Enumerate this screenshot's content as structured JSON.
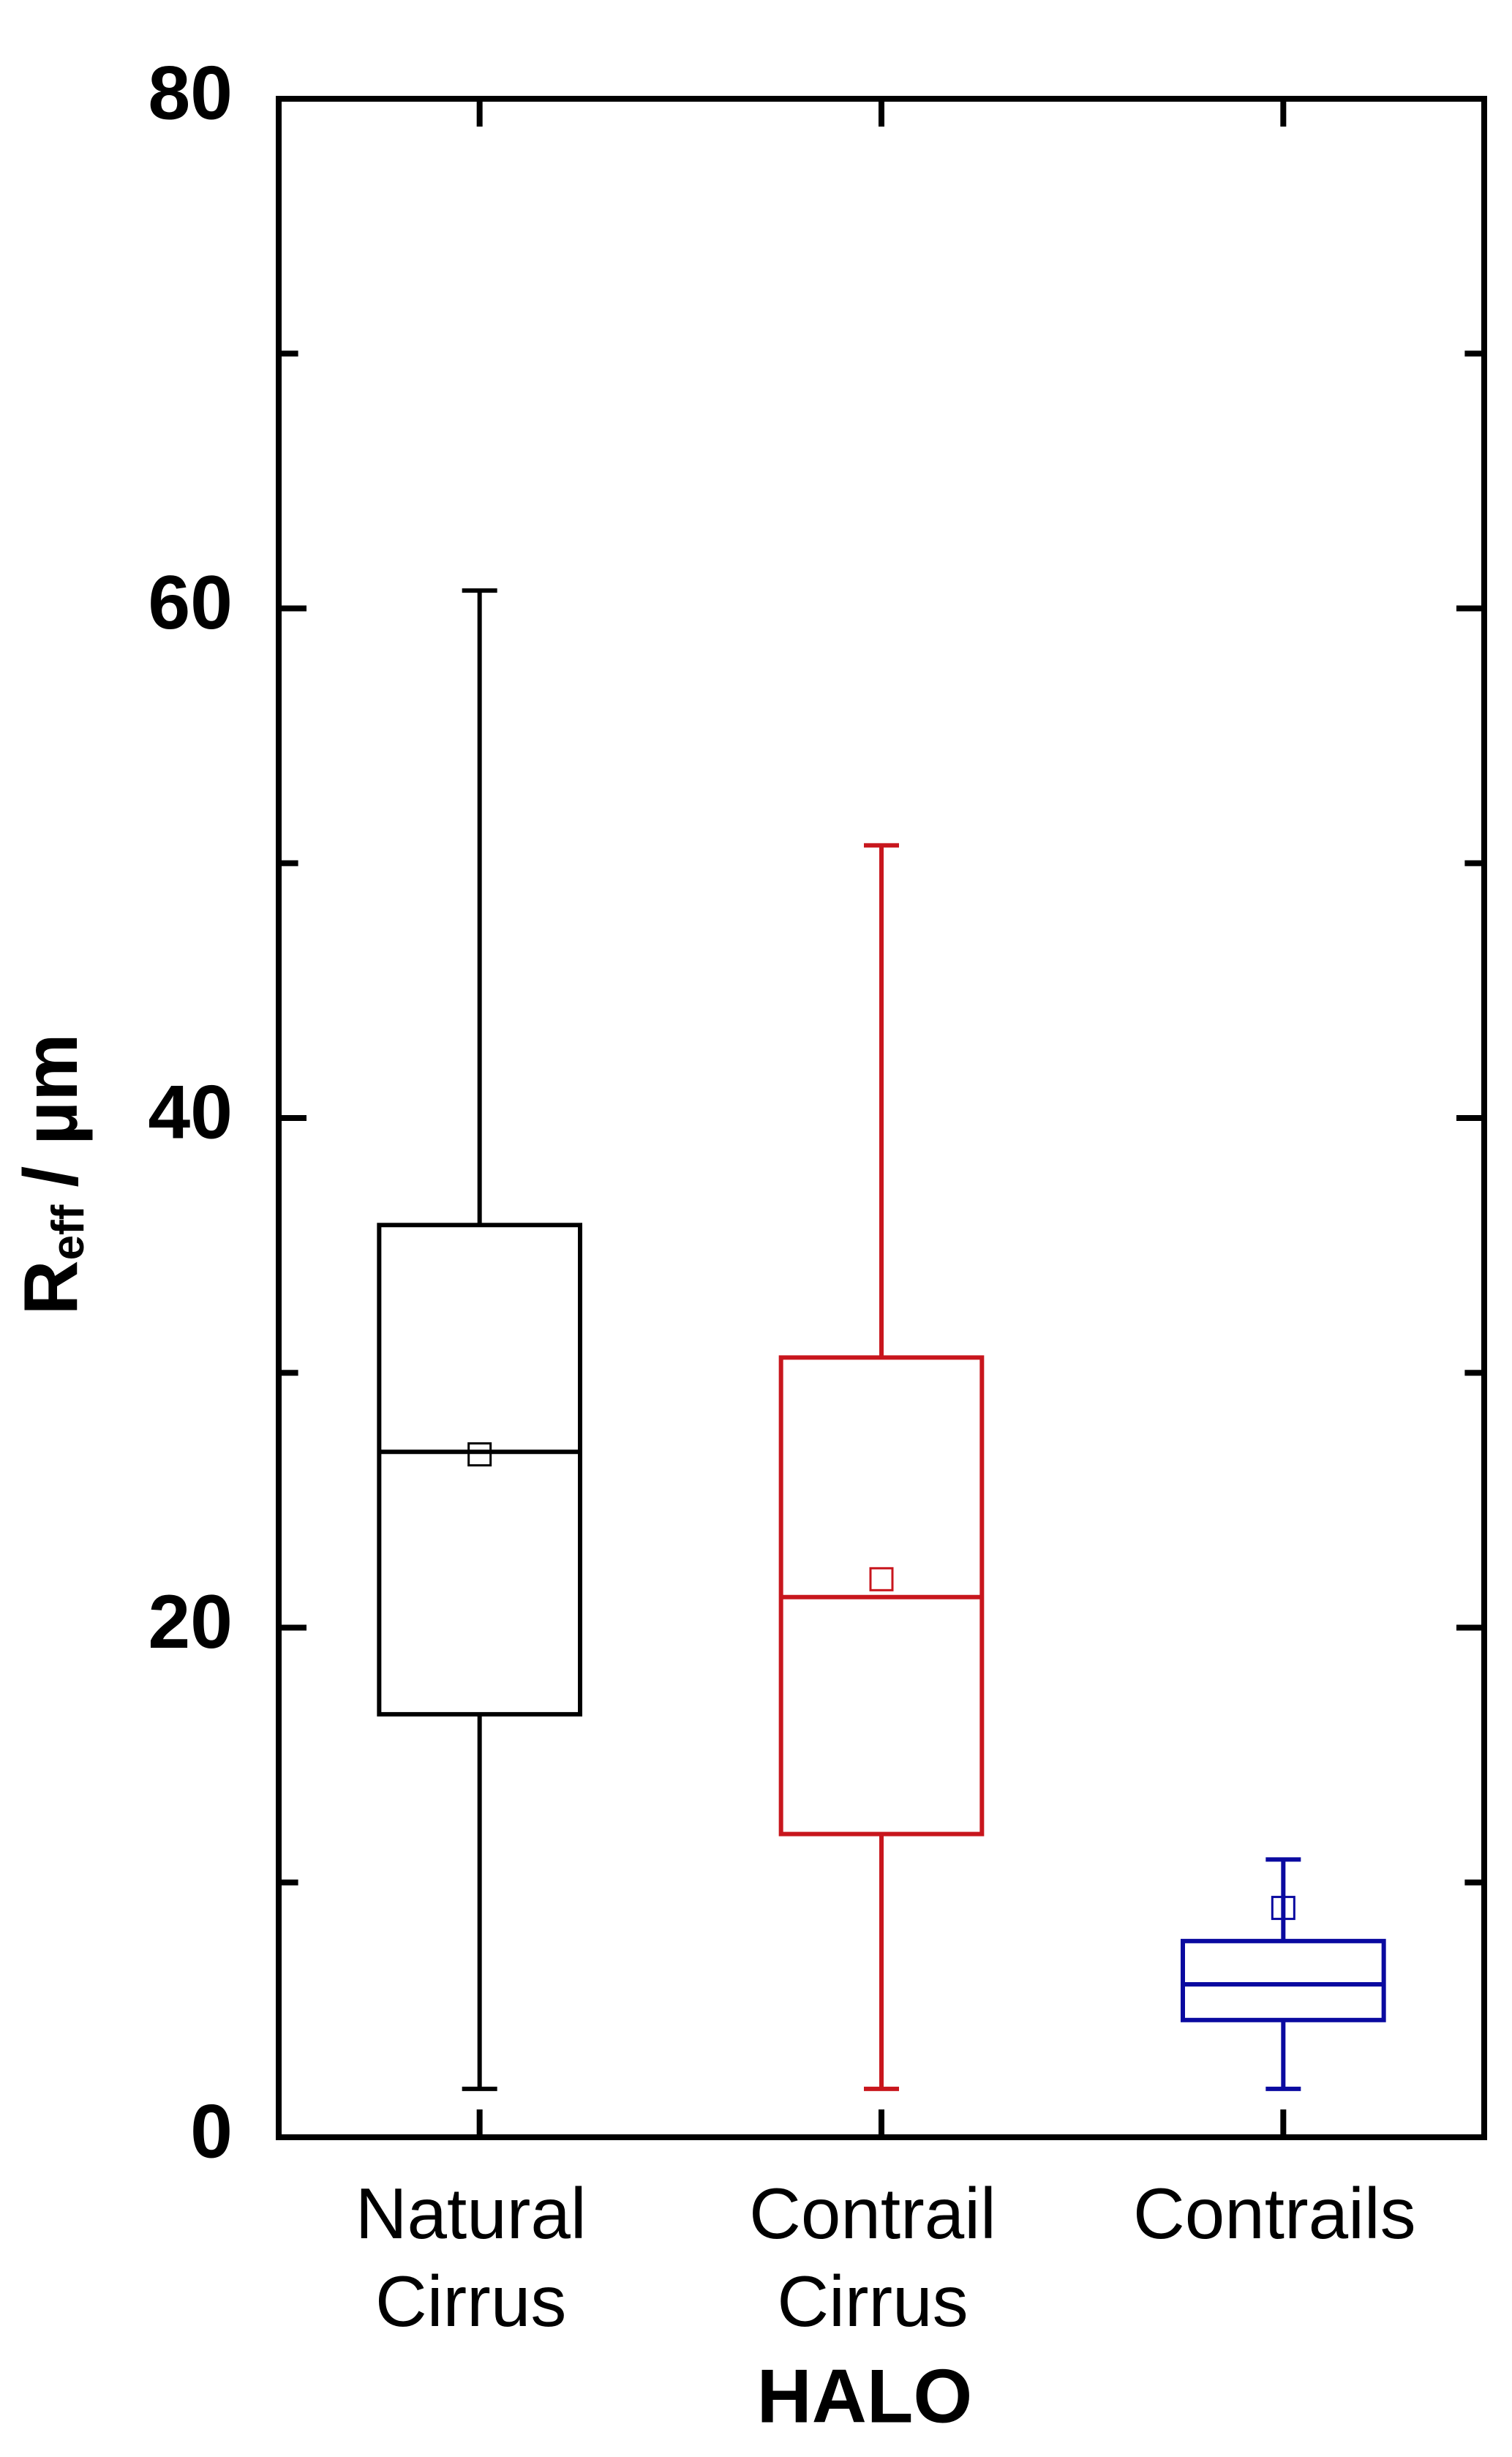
{
  "chart_data": {
    "type": "box",
    "categories": [
      [
        "Natural",
        "Cirrus"
      ],
      [
        "Contrail",
        "Cirrus"
      ],
      [
        "Contrails"
      ]
    ],
    "xlabel": "HALO",
    "ylabel": "R",
    "ylabel_sub": "eff",
    "ylabel_unit": "/ µm",
    "ylim": [
      0,
      80
    ],
    "yticks": [
      0,
      20,
      40,
      60,
      80
    ],
    "minor_yticks": [
      10,
      30,
      50,
      70
    ],
    "boxes": [
      {
        "color": "#000000",
        "min": 1.9,
        "q1": 16.6,
        "median": 26.9,
        "q3": 35.8,
        "max": 60.7,
        "mean": 26.8
      },
      {
        "color": "#c8161d",
        "min": 1.9,
        "q1": 11.9,
        "median": 21.2,
        "q3": 30.6,
        "max": 50.7,
        "mean": 21.9
      },
      {
        "color": "#0a0aa0",
        "min": 1.9,
        "q1": 4.6,
        "median": 6.0,
        "q3": 7.7,
        "max": 10.9,
        "mean": 9.0
      }
    ]
  }
}
